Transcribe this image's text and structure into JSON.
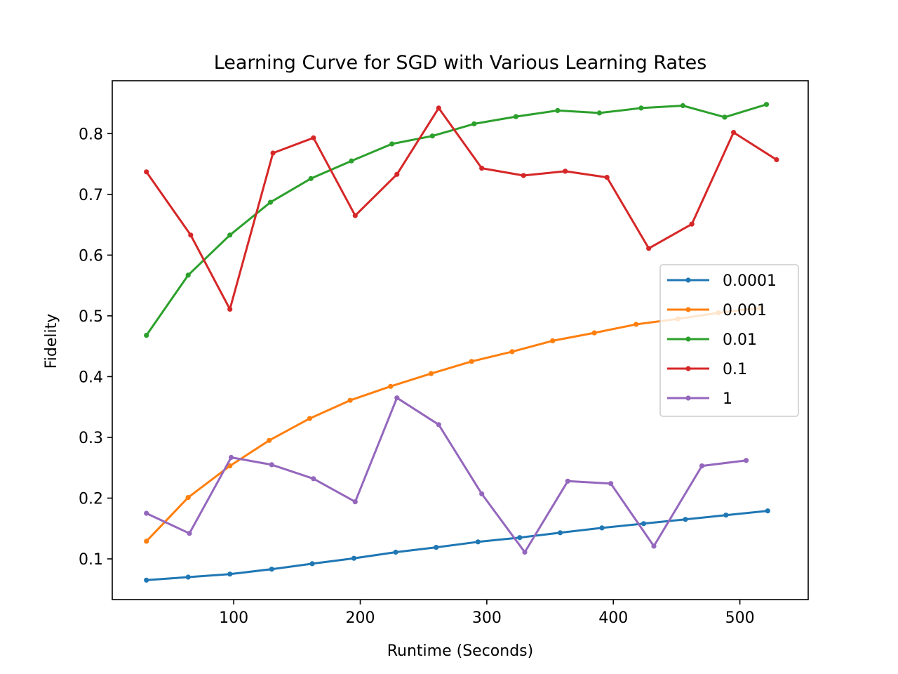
{
  "chart_data": {
    "type": "line",
    "title": "Learning Curve for SGD with Various Learning Rates",
    "xlabel": "Runtime (Seconds)",
    "ylabel": "Fidelity",
    "xlim": [
      4,
      554
    ],
    "ylim": [
      0.033,
      0.887
    ],
    "xticks": [
      100,
      200,
      300,
      400,
      500
    ],
    "yticks": [
      0.1,
      0.2,
      0.3,
      0.4,
      0.5,
      0.6,
      0.7,
      0.8
    ],
    "grid": false,
    "legend_position": "center-right",
    "series": [
      {
        "name": "0.0001",
        "color": "#1f77b4",
        "x": [
          31,
          64,
          97,
          130,
          162,
          195,
          228,
          260,
          293,
          326,
          358,
          391,
          424,
          457,
          489,
          522
        ],
        "y": [
          0.065,
          0.07,
          0.075,
          0.083,
          0.092,
          0.101,
          0.111,
          0.119,
          0.128,
          0.135,
          0.143,
          0.151,
          0.158,
          0.165,
          0.172,
          0.179
        ]
      },
      {
        "name": "0.001",
        "color": "#ff7f0e",
        "x": [
          31,
          64,
          97,
          128,
          160,
          192,
          224,
          256,
          288,
          320,
          352,
          385,
          418,
          451,
          483,
          516
        ],
        "y": [
          0.129,
          0.201,
          0.253,
          0.295,
          0.331,
          0.361,
          0.384,
          0.405,
          0.425,
          0.441,
          0.459,
          0.472,
          0.486,
          0.495,
          0.505,
          0.513
        ]
      },
      {
        "name": "0.01",
        "color": "#2ca02c",
        "x": [
          31,
          64,
          97,
          129,
          161,
          193,
          225,
          257,
          290,
          323,
          356,
          389,
          422,
          455,
          488,
          521
        ],
        "y": [
          0.468,
          0.567,
          0.633,
          0.687,
          0.726,
          0.755,
          0.783,
          0.796,
          0.816,
          0.828,
          0.838,
          0.834,
          0.842,
          0.846,
          0.827,
          0.848
        ]
      },
      {
        "name": "0.1",
        "color": "#d62728",
        "x": [
          31,
          66,
          97,
          131,
          163,
          196,
          229,
          262,
          296,
          329,
          362,
          395,
          428,
          462,
          495,
          529
        ],
        "y": [
          0.737,
          0.633,
          0.511,
          0.768,
          0.793,
          0.665,
          0.733,
          0.842,
          0.743,
          0.731,
          0.738,
          0.728,
          0.611,
          0.651,
          0.802,
          0.757
        ]
      },
      {
        "name": "1",
        "color": "#9467bd",
        "x": [
          31,
          65,
          98,
          130,
          163,
          196,
          229,
          262,
          296,
          330,
          364,
          398,
          432,
          470,
          505
        ],
        "y": [
          0.175,
          0.142,
          0.267,
          0.255,
          0.232,
          0.194,
          0.365,
          0.321,
          0.207,
          0.111,
          0.228,
          0.224,
          0.121,
          0.253,
          0.262
        ]
      }
    ]
  }
}
